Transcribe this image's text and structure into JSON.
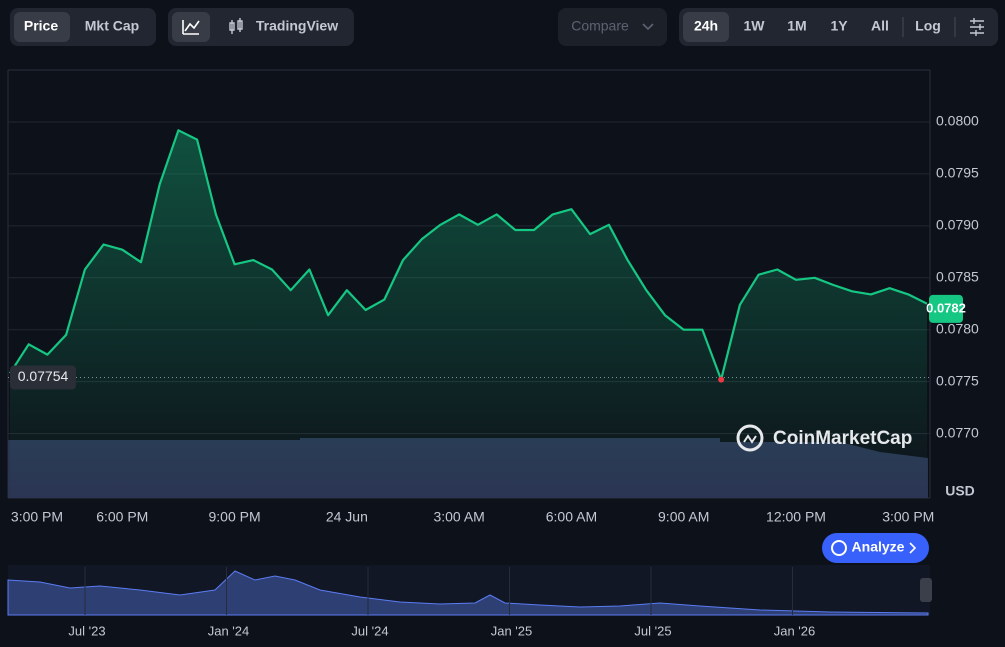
{
  "toolbar": {
    "views": [
      "Price",
      "Mkt Cap"
    ],
    "tool": "TradingView",
    "compare": "Compare",
    "ranges": [
      "24h",
      "1W",
      "1M",
      "1Y",
      "All",
      "Log"
    ]
  },
  "chart_data": {
    "type": "line",
    "color": "#16c784",
    "low_color": "#ea3943",
    "categories": [
      "3:00 PM",
      null,
      null,
      null,
      null,
      null,
      "6:00 PM",
      null,
      null,
      null,
      null,
      null,
      "9:00 PM",
      null,
      null,
      null,
      null,
      null,
      "24 Jun",
      null,
      null,
      null,
      null,
      null,
      "3:00 AM",
      null,
      null,
      null,
      null,
      null,
      "6:00 AM",
      null,
      null,
      null,
      null,
      null,
      "9:00 AM",
      null,
      null,
      null,
      null,
      null,
      "12:00 PM",
      null,
      null,
      null,
      null,
      null,
      "3:00 PM",
      null
    ],
    "values": [
      0.07758,
      0.07786,
      0.07776,
      0.07795,
      0.07858,
      0.07882,
      0.07877,
      0.07865,
      0.0794,
      0.07992,
      0.07983,
      0.07911,
      0.07863,
      0.07867,
      0.07858,
      0.07838,
      0.07858,
      0.07814,
      0.07838,
      0.07819,
      0.07829,
      0.07867,
      0.07887,
      0.07901,
      0.07911,
      0.07901,
      0.07911,
      0.07896,
      0.07896,
      0.07911,
      0.07916,
      0.07892,
      0.07901,
      0.07867,
      0.07838,
      0.07814,
      0.078,
      0.078,
      0.07752,
      0.07824,
      0.07853,
      0.07858,
      0.07848,
      0.0785,
      0.07843,
      0.07837,
      0.07834,
      0.0784,
      0.07834,
      0.07825
    ],
    "ylim": [
      0.07638,
      0.0805
    ],
    "yticks": [
      {
        "value": 0.08,
        "label": "0.0800"
      },
      0.0795,
      {
        "value": 0.079,
        "label": "0.0790"
      },
      0.0785,
      {
        "value": 0.078,
        "label": "0.0780"
      },
      0.0775,
      {
        "value": 0.077,
        "label": "0.0770"
      }
    ],
    "grid": true,
    "reference_value": 0.07754,
    "current_value": 0.0782,
    "y_unit": "USD",
    "watermark": "CoinMarketCap",
    "button": "Analyze",
    "navigator_labels": [
      "Jul '23",
      "Jan '24",
      "Jul '24",
      "Jan '25",
      "Jul '25",
      "Jan '26"
    ]
  }
}
